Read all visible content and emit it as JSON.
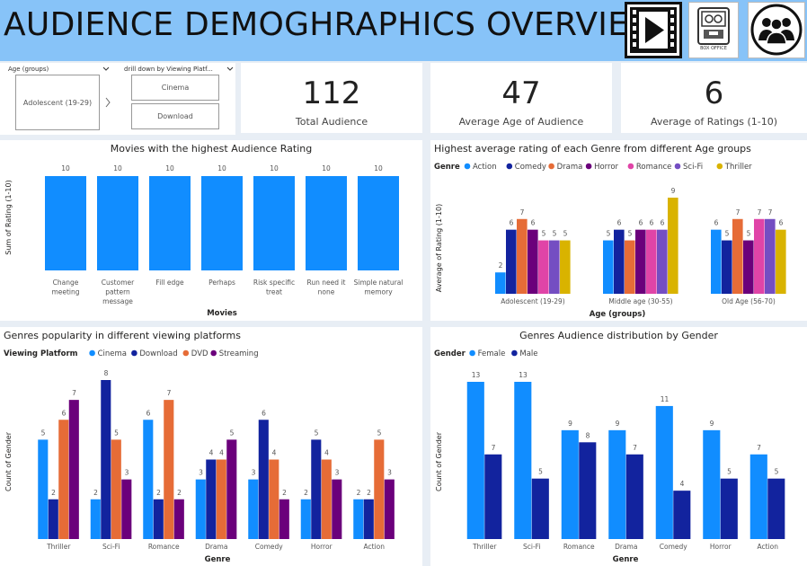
{
  "header": {
    "title": "AUDIENCE DEMOGHRAPHICS OVERVIEW",
    "box_office_label": "BOX OFFICE",
    "icons": [
      "video-play-icon",
      "box-office-icon",
      "audience-group-icon"
    ]
  },
  "slicers": {
    "age_title": "Age (groups)",
    "age_value": "Adolescent (19-29)",
    "platform_title": "drill down by Viewing Platf...",
    "platform_values": [
      "Cinema",
      "Download"
    ]
  },
  "cards": [
    {
      "value": "112",
      "label": "Total Audience"
    },
    {
      "value": "47",
      "label": "Average Age of Audience"
    },
    {
      "value": "6",
      "label": "Average of Ratings (1-10)"
    }
  ],
  "colors": {
    "Action": "#118dff",
    "Comedy": "#12239e",
    "Drama": "#e66c37",
    "Horror": "#6b007b",
    "Romance": "#e044a7",
    "Sci-Fi": "#744ec2",
    "Thriller": "#d9b300",
    "Cinema": "#118dff",
    "Download": "#12239e",
    "DVD": "#e66c37",
    "Streaming": "#6b007b",
    "Female": "#118dff",
    "Male": "#12239e"
  },
  "chart_data": [
    {
      "type": "bar",
      "title": "Movies with the highest Audience Rating",
      "xlabel": "Movies",
      "ylabel": "Sum of Rating (1-10)",
      "categories": [
        [
          "Change",
          "meeting"
        ],
        [
          "Customer",
          "pattern",
          "message"
        ],
        [
          "Fill edge"
        ],
        [
          "Perhaps"
        ],
        [
          "Risk specific",
          "treat"
        ],
        [
          "Run need it",
          "none"
        ],
        [
          "Simple natural",
          "memory"
        ]
      ],
      "values": [
        10,
        10,
        10,
        10,
        10,
        10,
        10
      ],
      "ylim": [
        0,
        10
      ]
    },
    {
      "type": "bar",
      "title": "Highest average rating of each Genre from different Age groups",
      "legend_title": "Genre",
      "xlabel": "Age (groups)",
      "ylabel": "Average of Rating (1-10)",
      "categories": [
        "Adolescent (19-29)",
        "Middle age (30-55)",
        "Old Age (56-70)"
      ],
      "series": [
        {
          "name": "Action",
          "values": [
            2,
            5,
            6
          ]
        },
        {
          "name": "Comedy",
          "values": [
            6,
            6,
            5
          ]
        },
        {
          "name": "Drama",
          "values": [
            7,
            5,
            7
          ]
        },
        {
          "name": "Horror",
          "values": [
            6,
            6,
            5
          ]
        },
        {
          "name": "Romance",
          "values": [
            5,
            6,
            7
          ]
        },
        {
          "name": "Sci-Fi",
          "values": [
            5,
            6,
            7
          ]
        },
        {
          "name": "Thriller",
          "values": [
            5,
            9,
            6
          ]
        }
      ],
      "ylim": [
        0,
        9
      ]
    },
    {
      "type": "bar",
      "title": "Genres popularity in different viewing platforms",
      "legend_title": "Viewing Platform",
      "xlabel": "Genre",
      "ylabel": "Count of Gender",
      "categories": [
        "Thriller",
        "Sci-Fi",
        "Romance",
        "Drama",
        "Comedy",
        "Horror",
        "Action"
      ],
      "series": [
        {
          "name": "Cinema",
          "values": [
            5,
            2,
            6,
            3,
            3,
            2,
            2
          ]
        },
        {
          "name": "Download",
          "values": [
            2,
            8,
            2,
            4,
            6,
            5,
            2
          ]
        },
        {
          "name": "DVD",
          "values": [
            6,
            5,
            7,
            4,
            4,
            4,
            5
          ]
        },
        {
          "name": "Streaming",
          "values": [
            7,
            3,
            2,
            5,
            2,
            3,
            3
          ]
        }
      ],
      "ylim": [
        0,
        8
      ]
    },
    {
      "type": "bar",
      "title": "Genres Audience distribution by Gender",
      "legend_title": "Gender",
      "xlabel": "Genre",
      "ylabel": "Count of Gender",
      "categories": [
        "Thriller",
        "Sci-Fi",
        "Romance",
        "Drama",
        "Comedy",
        "Horror",
        "Action"
      ],
      "series": [
        {
          "name": "Female",
          "values": [
            13,
            13,
            9,
            9,
            11,
            9,
            7
          ]
        },
        {
          "name": "Male",
          "values": [
            7,
            5,
            8,
            7,
            4,
            5,
            5
          ]
        }
      ],
      "ylim": [
        0,
        13
      ]
    }
  ]
}
